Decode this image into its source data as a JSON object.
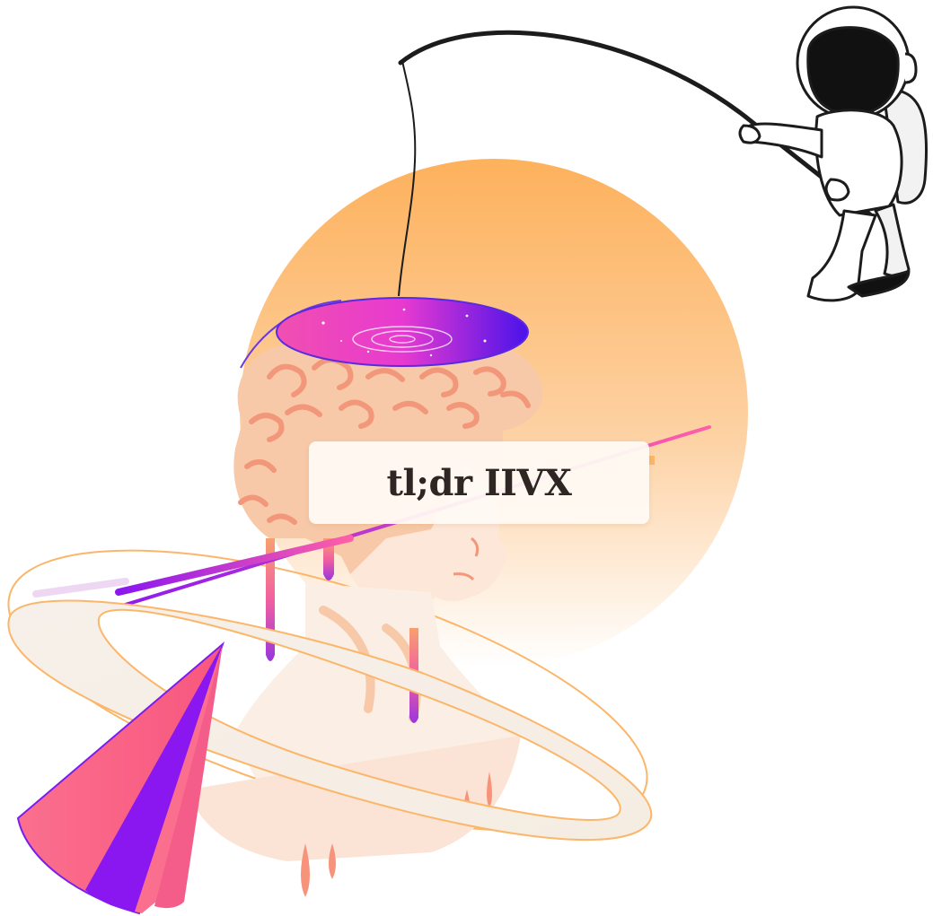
{
  "title": "tl;dr IIVX",
  "colors": {
    "sun_top": "#fdb15c",
    "sun_bottom": "#ffffff",
    "bust": "#f7c9a8",
    "bust_shade": "#f2977a",
    "drip_pink": "#f25fa0",
    "drip_purple": "#a438d9",
    "ring_fill": "#f6efe6",
    "ring_stroke": "#fbb66a",
    "portal_pink": "#f23bb5",
    "portal_blue": "#5a12e8",
    "cone_pink": "#fb6f8e",
    "cone_purple": "#8a16f0",
    "ink": "#1c1c1c"
  },
  "icons": [
    "astronaut-icon",
    "fishing-rod-icon",
    "portal-disc-icon",
    "cone-icon"
  ]
}
